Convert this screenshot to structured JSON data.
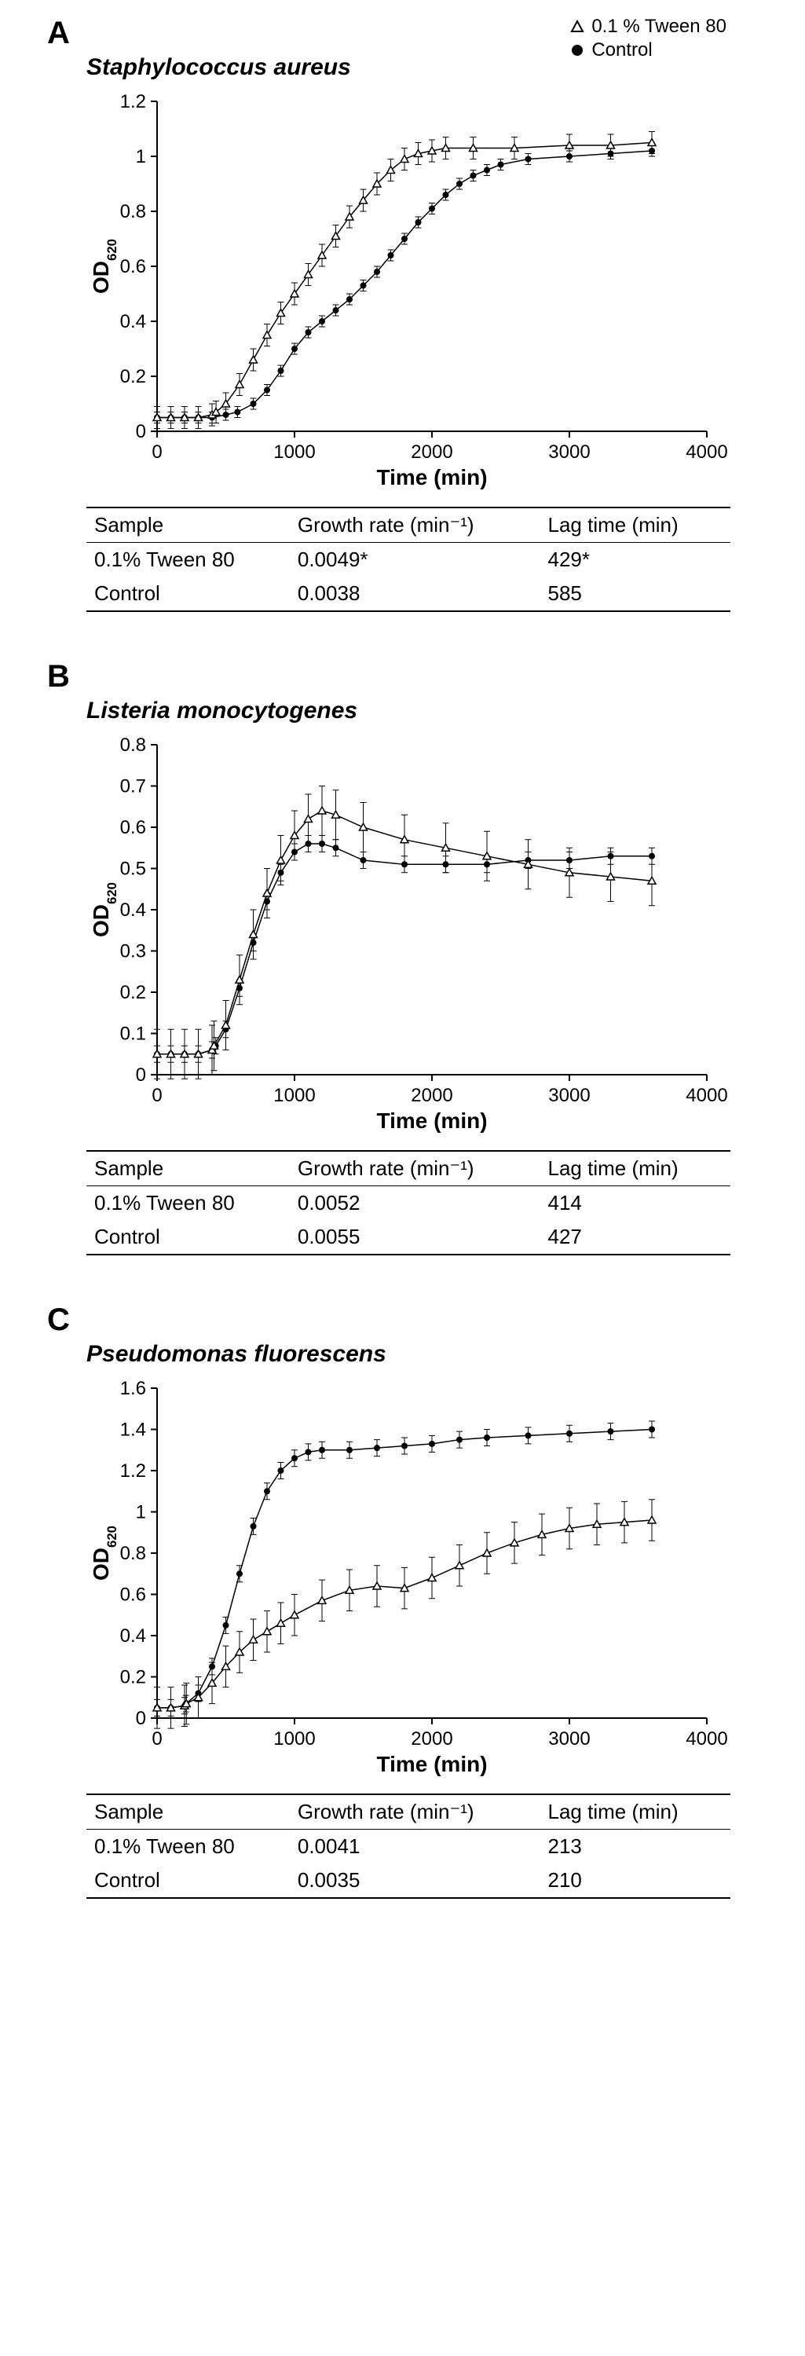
{
  "legend": {
    "tween_label": "0.1 % Tween 80",
    "control_label": "Control"
  },
  "panels": [
    {
      "letter": "A",
      "species": "Staphylococcus aureus",
      "chart": {
        "type": "line",
        "x_label": "Time (min)",
        "y_label": "OD",
        "y_label_sub": "620",
        "xlim": [
          0,
          4000
        ],
        "ylim": [
          0,
          1.2
        ],
        "xticks": [
          0,
          1000,
          2000,
          3000,
          4000
        ],
        "yticks": [
          0,
          0.2,
          0.4,
          0.6,
          0.8,
          1.0,
          1.2
        ],
        "background": "#ffffff",
        "axis_color": "#000000",
        "label_fontsize": 28,
        "tick_fontsize": 24,
        "series": [
          {
            "name": "Control",
            "marker": "filled-circle",
            "color": "#000000",
            "error_color": "#000000",
            "error_w": 0.02,
            "data": [
              [
                0,
                0.05
              ],
              [
                100,
                0.05
              ],
              [
                200,
                0.05
              ],
              [
                300,
                0.05
              ],
              [
                400,
                0.05
              ],
              [
                500,
                0.06
              ],
              [
                585,
                0.07
              ],
              [
                700,
                0.1
              ],
              [
                800,
                0.15
              ],
              [
                900,
                0.22
              ],
              [
                1000,
                0.3
              ],
              [
                1100,
                0.36
              ],
              [
                1200,
                0.4
              ],
              [
                1300,
                0.44
              ],
              [
                1400,
                0.48
              ],
              [
                1500,
                0.53
              ],
              [
                1600,
                0.58
              ],
              [
                1700,
                0.64
              ],
              [
                1800,
                0.7
              ],
              [
                1900,
                0.76
              ],
              [
                2000,
                0.81
              ],
              [
                2100,
                0.86
              ],
              [
                2200,
                0.9
              ],
              [
                2300,
                0.93
              ],
              [
                2400,
                0.95
              ],
              [
                2500,
                0.97
              ],
              [
                2700,
                0.99
              ],
              [
                3000,
                1.0
              ],
              [
                3300,
                1.01
              ],
              [
                3600,
                1.02
              ]
            ]
          },
          {
            "name": "Tween 80",
            "marker": "open-triangle",
            "color": "#000000",
            "error_color": "#000000",
            "error_w": 0.04,
            "data": [
              [
                0,
                0.05
              ],
              [
                100,
                0.05
              ],
              [
                200,
                0.05
              ],
              [
                300,
                0.05
              ],
              [
                400,
                0.06
              ],
              [
                429,
                0.07
              ],
              [
                500,
                0.1
              ],
              [
                600,
                0.17
              ],
              [
                700,
                0.26
              ],
              [
                800,
                0.35
              ],
              [
                900,
                0.43
              ],
              [
                1000,
                0.5
              ],
              [
                1100,
                0.57
              ],
              [
                1200,
                0.64
              ],
              [
                1300,
                0.71
              ],
              [
                1400,
                0.78
              ],
              [
                1500,
                0.84
              ],
              [
                1600,
                0.9
              ],
              [
                1700,
                0.95
              ],
              [
                1800,
                0.99
              ],
              [
                1900,
                1.01
              ],
              [
                2000,
                1.02
              ],
              [
                2100,
                1.03
              ],
              [
                2300,
                1.03
              ],
              [
                2600,
                1.03
              ],
              [
                3000,
                1.04
              ],
              [
                3300,
                1.04
              ],
              [
                3600,
                1.05
              ]
            ]
          }
        ]
      },
      "table": {
        "headers": [
          "Sample",
          "Growth rate (min⁻¹)",
          "Lag time (min)"
        ],
        "rows": [
          [
            "0.1% Tween 80",
            "0.0049*",
            "429*"
          ],
          [
            "Control",
            "0.0038",
            "585"
          ]
        ]
      }
    },
    {
      "letter": "B",
      "species": "Listeria monocytogenes",
      "chart": {
        "type": "line",
        "x_label": "Time (min)",
        "y_label": "OD",
        "y_label_sub": "620",
        "xlim": [
          0,
          4000
        ],
        "ylim": [
          0,
          0.8
        ],
        "xticks": [
          0,
          1000,
          2000,
          3000,
          4000
        ],
        "yticks": [
          0,
          0.1,
          0.2,
          0.3,
          0.4,
          0.5,
          0.6,
          0.7,
          0.8
        ],
        "background": "#ffffff",
        "axis_color": "#000000",
        "label_fontsize": 28,
        "tick_fontsize": 24,
        "series": [
          {
            "name": "Control",
            "marker": "filled-circle",
            "color": "#000000",
            "error_color": "#000000",
            "error_w": 0.02,
            "data": [
              [
                0,
                0.05
              ],
              [
                100,
                0.05
              ],
              [
                200,
                0.05
              ],
              [
                300,
                0.05
              ],
              [
                400,
                0.06
              ],
              [
                427,
                0.07
              ],
              [
                500,
                0.11
              ],
              [
                600,
                0.21
              ],
              [
                700,
                0.32
              ],
              [
                800,
                0.42
              ],
              [
                900,
                0.49
              ],
              [
                1000,
                0.54
              ],
              [
                1100,
                0.56
              ],
              [
                1200,
                0.56
              ],
              [
                1300,
                0.55
              ],
              [
                1500,
                0.52
              ],
              [
                1800,
                0.51
              ],
              [
                2100,
                0.51
              ],
              [
                2400,
                0.51
              ],
              [
                2700,
                0.52
              ],
              [
                3000,
                0.52
              ],
              [
                3300,
                0.53
              ],
              [
                3600,
                0.53
              ]
            ]
          },
          {
            "name": "Tween 80",
            "marker": "open-triangle",
            "color": "#000000",
            "error_color": "#000000",
            "error_w": 0.06,
            "data": [
              [
                0,
                0.05
              ],
              [
                100,
                0.05
              ],
              [
                200,
                0.05
              ],
              [
                300,
                0.05
              ],
              [
                400,
                0.06
              ],
              [
                414,
                0.07
              ],
              [
                500,
                0.12
              ],
              [
                600,
                0.23
              ],
              [
                700,
                0.34
              ],
              [
                800,
                0.44
              ],
              [
                900,
                0.52
              ],
              [
                1000,
                0.58
              ],
              [
                1100,
                0.62
              ],
              [
                1200,
                0.64
              ],
              [
                1300,
                0.63
              ],
              [
                1500,
                0.6
              ],
              [
                1800,
                0.57
              ],
              [
                2100,
                0.55
              ],
              [
                2400,
                0.53
              ],
              [
                2700,
                0.51
              ],
              [
                3000,
                0.49
              ],
              [
                3300,
                0.48
              ],
              [
                3600,
                0.47
              ]
            ]
          }
        ]
      },
      "table": {
        "headers": [
          "Sample",
          "Growth rate (min⁻¹)",
          "Lag time (min)"
        ],
        "rows": [
          [
            "0.1% Tween 80",
            "0.0052",
            "414"
          ],
          [
            "Control",
            "0.0055",
            "427"
          ]
        ]
      }
    },
    {
      "letter": "C",
      "species": "Pseudomonas fluorescens",
      "chart": {
        "type": "line",
        "x_label": "Time (min)",
        "y_label": "OD",
        "y_label_sub": "620",
        "xlim": [
          0,
          4000
        ],
        "ylim": [
          0,
          1.6
        ],
        "xticks": [
          0,
          1000,
          2000,
          3000,
          4000
        ],
        "yticks": [
          0,
          0.2,
          0.4,
          0.6,
          0.8,
          1.0,
          1.2,
          1.4,
          1.6
        ],
        "background": "#ffffff",
        "axis_color": "#000000",
        "label_fontsize": 28,
        "tick_fontsize": 24,
        "series": [
          {
            "name": "Control",
            "marker": "filled-circle",
            "color": "#000000",
            "error_color": "#000000",
            "error_w": 0.04,
            "data": [
              [
                0,
                0.05
              ],
              [
                100,
                0.05
              ],
              [
                200,
                0.06
              ],
              [
                210,
                0.07
              ],
              [
                300,
                0.12
              ],
              [
                400,
                0.25
              ],
              [
                500,
                0.45
              ],
              [
                600,
                0.7
              ],
              [
                700,
                0.93
              ],
              [
                800,
                1.1
              ],
              [
                900,
                1.2
              ],
              [
                1000,
                1.26
              ],
              [
                1100,
                1.29
              ],
              [
                1200,
                1.3
              ],
              [
                1400,
                1.3
              ],
              [
                1600,
                1.31
              ],
              [
                1800,
                1.32
              ],
              [
                2000,
                1.33
              ],
              [
                2200,
                1.35
              ],
              [
                2400,
                1.36
              ],
              [
                2700,
                1.37
              ],
              [
                3000,
                1.38
              ],
              [
                3300,
                1.39
              ],
              [
                3600,
                1.4
              ]
            ]
          },
          {
            "name": "Tween 80",
            "marker": "open-triangle",
            "color": "#000000",
            "error_color": "#000000",
            "error_w": 0.1,
            "data": [
              [
                0,
                0.05
              ],
              [
                100,
                0.05
              ],
              [
                200,
                0.06
              ],
              [
                213,
                0.07
              ],
              [
                300,
                0.1
              ],
              [
                400,
                0.17
              ],
              [
                500,
                0.25
              ],
              [
                600,
                0.32
              ],
              [
                700,
                0.38
              ],
              [
                800,
                0.42
              ],
              [
                900,
                0.46
              ],
              [
                1000,
                0.5
              ],
              [
                1200,
                0.57
              ],
              [
                1400,
                0.62
              ],
              [
                1600,
                0.64
              ],
              [
                1800,
                0.63
              ],
              [
                2000,
                0.68
              ],
              [
                2200,
                0.74
              ],
              [
                2400,
                0.8
              ],
              [
                2600,
                0.85
              ],
              [
                2800,
                0.89
              ],
              [
                3000,
                0.92
              ],
              [
                3200,
                0.94
              ],
              [
                3400,
                0.95
              ],
              [
                3600,
                0.96
              ]
            ]
          }
        ]
      },
      "table": {
        "headers": [
          "Sample",
          "Growth rate (min⁻¹)",
          "Lag time (min)"
        ],
        "rows": [
          [
            "0.1% Tween 80",
            "0.0041",
            "213"
          ],
          [
            "Control",
            "0.0035",
            "210"
          ]
        ]
      }
    }
  ]
}
